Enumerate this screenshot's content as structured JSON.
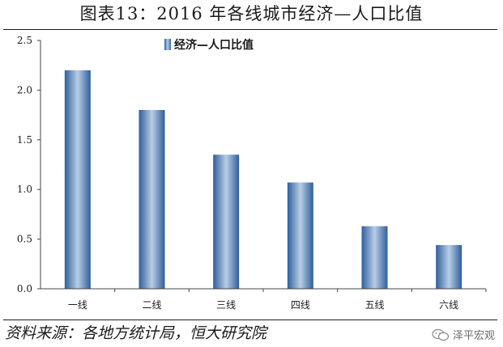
{
  "figure_title": "图表13：2016 年各线城市经济—人口比值",
  "source_note": "资料来源：各地方统计局，恒大研究院",
  "watermark": "泽平宏观",
  "colors": {
    "bar_edge": "#2f5f9c",
    "bar_center": "#b9cde6",
    "axis": "#444444"
  },
  "chart_data": {
    "type": "bar",
    "title": "",
    "xlabel": "",
    "ylabel": "",
    "categories": [
      "一线",
      "二线",
      "三线",
      "四线",
      "五线",
      "六线"
    ],
    "series": [
      {
        "name": "经济—人口比值",
        "values": [
          2.2,
          1.8,
          1.35,
          1.07,
          0.63,
          0.44
        ]
      }
    ],
    "ylim": [
      0,
      2.5
    ],
    "yticks": [
      "0.0",
      "0.5",
      "1.0",
      "1.5",
      "2.0",
      "2.5"
    ],
    "grid": false,
    "legend": "top-left"
  }
}
